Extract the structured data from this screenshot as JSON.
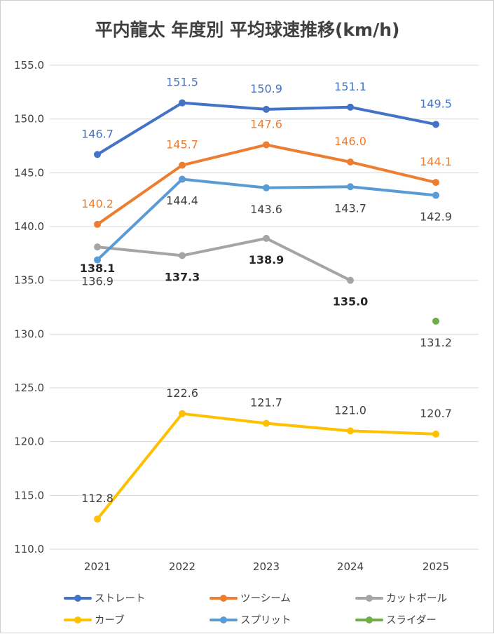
{
  "chart_data": {
    "type": "line",
    "title": "平内龍太 年度別 平均球速推移(km/h)",
    "categories": [
      "2021",
      "2022",
      "2023",
      "2024",
      "2025"
    ],
    "ylim": [
      110.0,
      155.0
    ],
    "yticks": [
      "110.0",
      "115.0",
      "120.0",
      "125.0",
      "130.0",
      "135.0",
      "140.0",
      "145.0",
      "150.0",
      "155.0"
    ],
    "grid": true,
    "legend_position": "bottom",
    "series": [
      {
        "name": "ストレート",
        "color": "#4472c4",
        "values": [
          146.7,
          151.5,
          150.9,
          151.1,
          149.5
        ],
        "labels": [
          "146.7",
          "151.5",
          "150.9",
          "151.1",
          "149.5"
        ],
        "label_color": "#4472c4",
        "label_pos": "above",
        "label_bold": false
      },
      {
        "name": "ツーシーム",
        "color": "#ed7d31",
        "values": [
          140.2,
          145.7,
          147.6,
          146.0,
          144.1
        ],
        "labels": [
          "140.2",
          "145.7",
          "147.6",
          "146.0",
          "144.1"
        ],
        "label_color": "#ed7d31",
        "label_pos": "above",
        "label_bold": false
      },
      {
        "name": "カットボール",
        "color": "#a5a5a5",
        "values": [
          138.1,
          137.3,
          138.9,
          135.0,
          null
        ],
        "labels": [
          "138.1",
          "137.3",
          "138.9",
          "135.0",
          ""
        ],
        "label_color": "#262626",
        "label_pos": "below",
        "label_bold": true
      },
      {
        "name": "カーブ",
        "color": "#ffc000",
        "values": [
          112.8,
          122.6,
          121.7,
          121.0,
          120.7
        ],
        "labels": [
          "112.8",
          "122.6",
          "121.7",
          "121.0",
          "120.7"
        ],
        "label_color": "#404040",
        "label_pos": "above",
        "label_bold": false
      },
      {
        "name": "スプリット",
        "color": "#5b9bd5",
        "values": [
          136.9,
          144.4,
          143.6,
          143.7,
          142.9
        ],
        "labels": [
          "136.9",
          "144.4",
          "143.6",
          "143.7",
          "142.9"
        ],
        "label_color": "#404040",
        "label_pos": "below",
        "label_bold": false
      },
      {
        "name": "スライダー",
        "color": "#70ad47",
        "values": [
          null,
          null,
          null,
          null,
          131.2
        ],
        "labels": [
          "",
          "",
          "",
          "",
          "131.2"
        ],
        "label_color": "#404040",
        "label_pos": "below",
        "label_bold": false
      }
    ]
  }
}
